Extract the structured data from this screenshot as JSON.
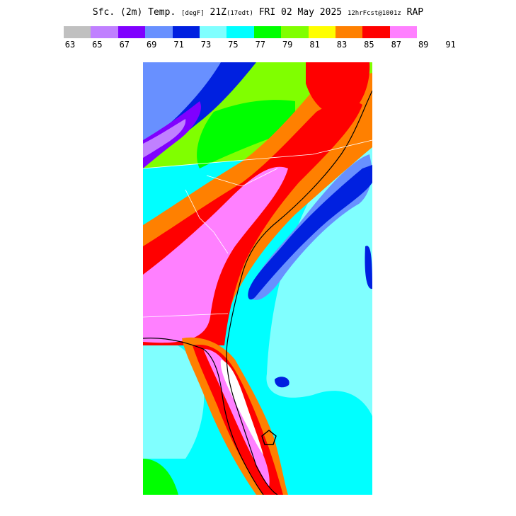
{
  "title": {
    "main": "Sfc. (2m) Temp.",
    "unit": "[degF]",
    "valid": "21Z",
    "edt": "(17edt)",
    "date": "FRI 02 May 2025",
    "forecast": "12hrFcst@1001z",
    "model": "RAP"
  },
  "legend": {
    "colors": [
      "#c0c0c0",
      "#c080ff",
      "#8000ff",
      "#6890ff",
      "#0020e0",
      "#80ffff",
      "#00ffff",
      "#00ff00",
      "#80ff00",
      "#ffff00",
      "#ff8000",
      "#ff0000",
      "#ff80ff"
    ],
    "labels": [
      "63",
      "65",
      "67",
      "69",
      "71",
      "73",
      "75",
      "77",
      "79",
      "81",
      "83",
      "85",
      "87",
      "89",
      "91"
    ]
  },
  "map_colors": {
    "ocean": "#00ffff",
    "band_73": "#80ffff",
    "band_71": "#0020e0",
    "band_69": "#6890ff",
    "band_67": "#8000ff",
    "band_65": "#c080ff",
    "band_77": "#00ff00",
    "band_79": "#80ff00",
    "band_81": "#ffff00",
    "band_83": "#ff8000",
    "band_85": "#ff0000",
    "band_87": "#ff80ff",
    "band_89": "#ffffff"
  }
}
